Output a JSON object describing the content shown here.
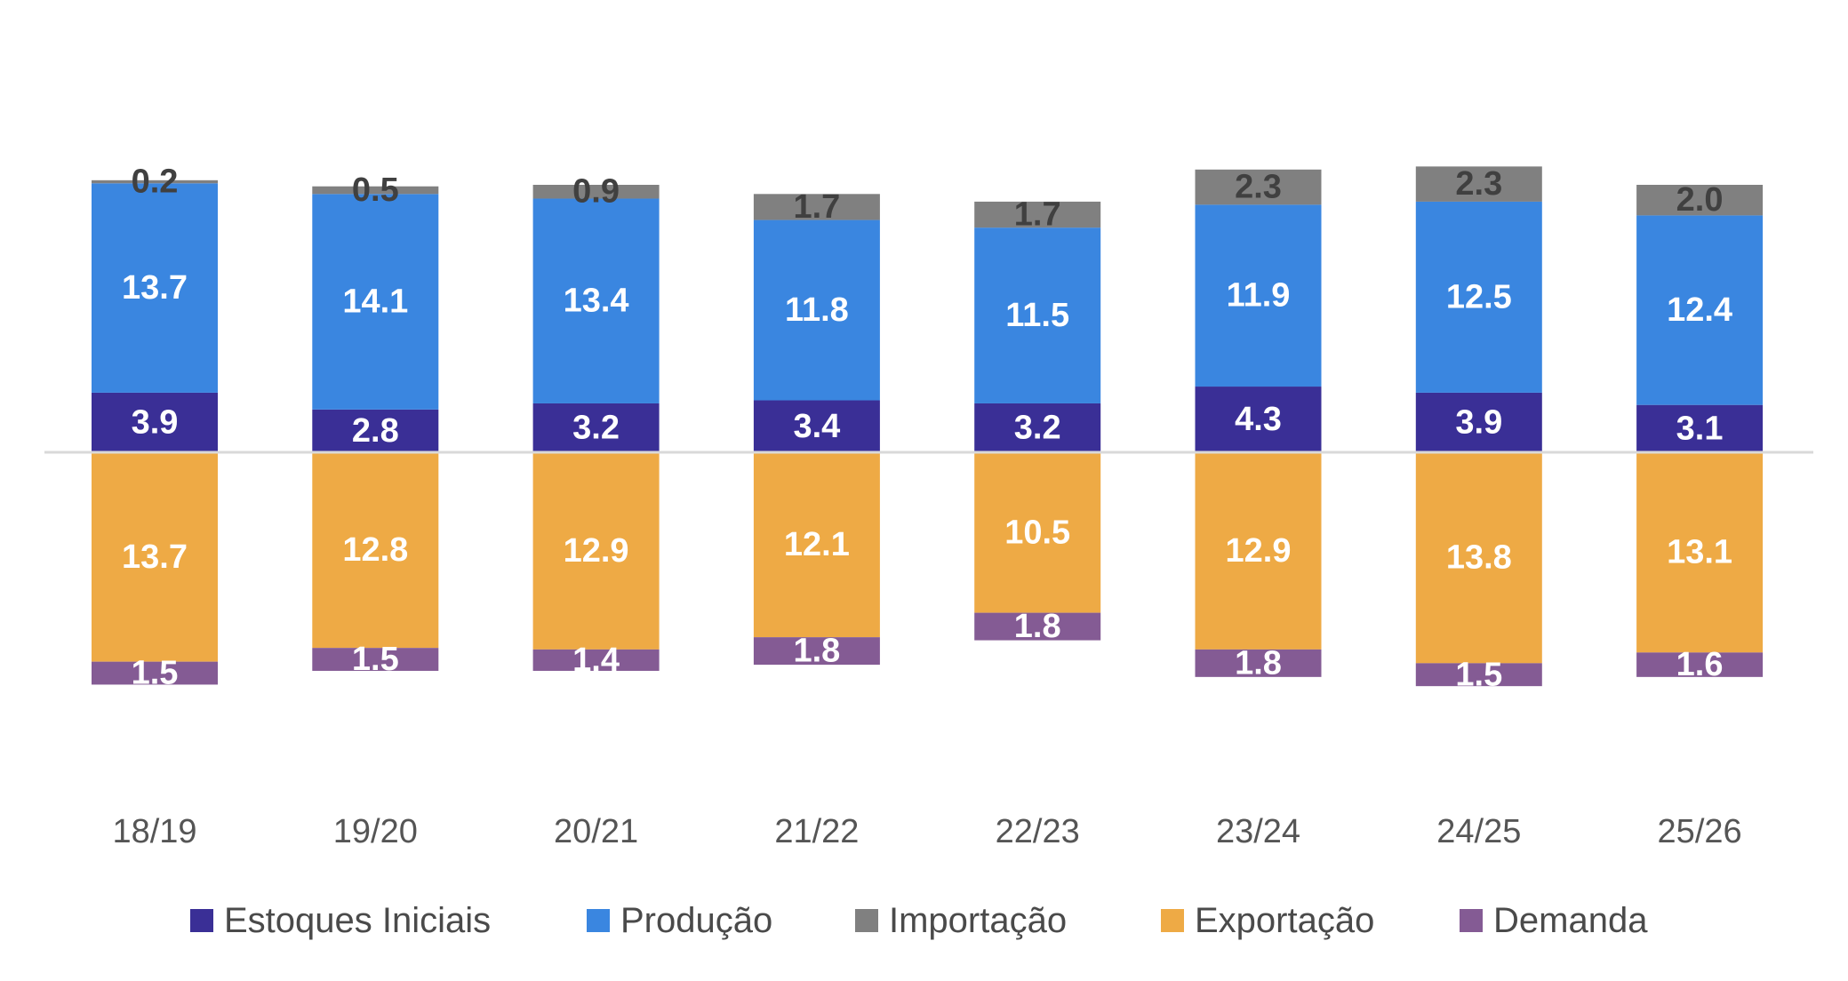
{
  "chart_data": {
    "type": "bar",
    "stacked": true,
    "categories": [
      "18/19",
      "19/20",
      "20/21",
      "21/22",
      "22/23",
      "23/24",
      "24/25",
      "25/26"
    ],
    "series": [
      {
        "name": "Estoques Iniciais",
        "color": "#3a2f96",
        "direction": "up",
        "values": [
          3.9,
          2.8,
          3.2,
          3.4,
          3.2,
          4.3,
          3.9,
          3.1
        ]
      },
      {
        "name": "Produção",
        "color": "#3a86e0",
        "direction": "up",
        "values": [
          13.7,
          14.1,
          13.4,
          11.8,
          11.5,
          11.9,
          12.5,
          12.4
        ]
      },
      {
        "name": "Importação",
        "color": "#808080",
        "direction": "up",
        "values": [
          0.2,
          0.5,
          0.9,
          1.7,
          1.7,
          2.3,
          2.3,
          2.0
        ]
      },
      {
        "name": "Exportação",
        "color": "#eeaa45",
        "direction": "down",
        "values": [
          13.7,
          12.8,
          12.9,
          12.1,
          10.5,
          12.9,
          13.8,
          13.1
        ]
      },
      {
        "name": "Demanda",
        "color": "#845b94",
        "direction": "down",
        "values": [
          1.5,
          1.5,
          1.4,
          1.8,
          1.8,
          1.8,
          1.5,
          1.6
        ]
      }
    ],
    "value_labels": {
      "Estoques Iniciais": [
        "3.9",
        "2.8",
        "3.2",
        "3.4",
        "3.2",
        "4.3",
        "3.9",
        "3.1"
      ],
      "Produção": [
        "13.7",
        "14.1",
        "13.4",
        "11.8",
        "11.5",
        "11.9",
        "12.5",
        "12.4"
      ],
      "Importação": [
        "0.2",
        "0.5",
        "0.9",
        "1.7",
        "1.7",
        "2.3",
        "2.3",
        "2.0"
      ],
      "Exportação": [
        "13.7",
        "12.8",
        "12.9",
        "12.1",
        "10.5",
        "12.9",
        "13.8",
        "13.1"
      ],
      "Demanda": [
        "1.5",
        "1.5",
        "1.4",
        "1.8",
        "1.8",
        "1.8",
        "1.5",
        "1.6"
      ]
    },
    "legend_position": "bottom",
    "grid": false,
    "baseline": 0
  }
}
